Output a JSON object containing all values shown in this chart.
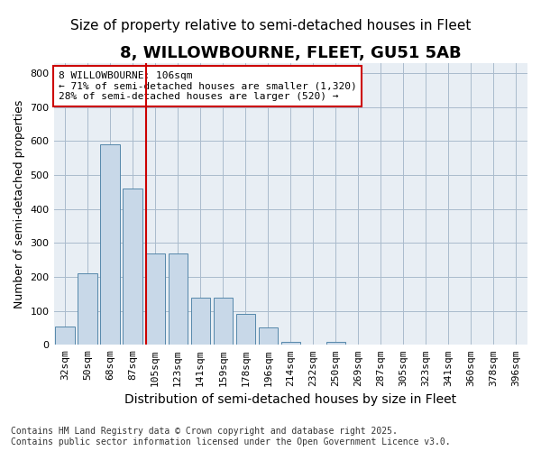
{
  "title": "8, WILLOWBOURNE, FLEET, GU51 5AB",
  "subtitle": "Size of property relative to semi-detached houses in Fleet",
  "xlabel": "Distribution of semi-detached houses by size in Fleet",
  "ylabel": "Number of semi-detached properties",
  "categories": [
    "32sqm",
    "50sqm",
    "68sqm",
    "87sqm",
    "105sqm",
    "123sqm",
    "141sqm",
    "159sqm",
    "178sqm",
    "196sqm",
    "214sqm",
    "232sqm",
    "250sqm",
    "269sqm",
    "287sqm",
    "305sqm",
    "323sqm",
    "341sqm",
    "360sqm",
    "378sqm",
    "396sqm"
  ],
  "values": [
    55,
    210,
    590,
    460,
    270,
    270,
    140,
    140,
    90,
    50,
    10,
    0,
    10,
    0,
    0,
    0,
    0,
    0,
    0,
    0,
    0
  ],
  "bar_color": "#c8d8e8",
  "bar_edge_color": "#5588aa",
  "red_line_index": 4,
  "red_line_color": "#cc0000",
  "annotation_box_text": "8 WILLOWBOURNE: 106sqm\n← 71% of semi-detached houses are smaller (1,320)\n28% of semi-detached houses are larger (520) →",
  "annotation_box_color": "#cc0000",
  "ylim": [
    0,
    830
  ],
  "yticks": [
    0,
    100,
    200,
    300,
    400,
    500,
    600,
    700,
    800
  ],
  "grid_color": "#aabbcc",
  "bg_color": "#e8eef4",
  "footer_line1": "Contains HM Land Registry data © Crown copyright and database right 2025.",
  "footer_line2": "Contains public sector information licensed under the Open Government Licence v3.0.",
  "title_fontsize": 13,
  "subtitle_fontsize": 11,
  "xlabel_fontsize": 10,
  "ylabel_fontsize": 9,
  "tick_fontsize": 8,
  "annotation_fontsize": 8,
  "footer_fontsize": 7
}
